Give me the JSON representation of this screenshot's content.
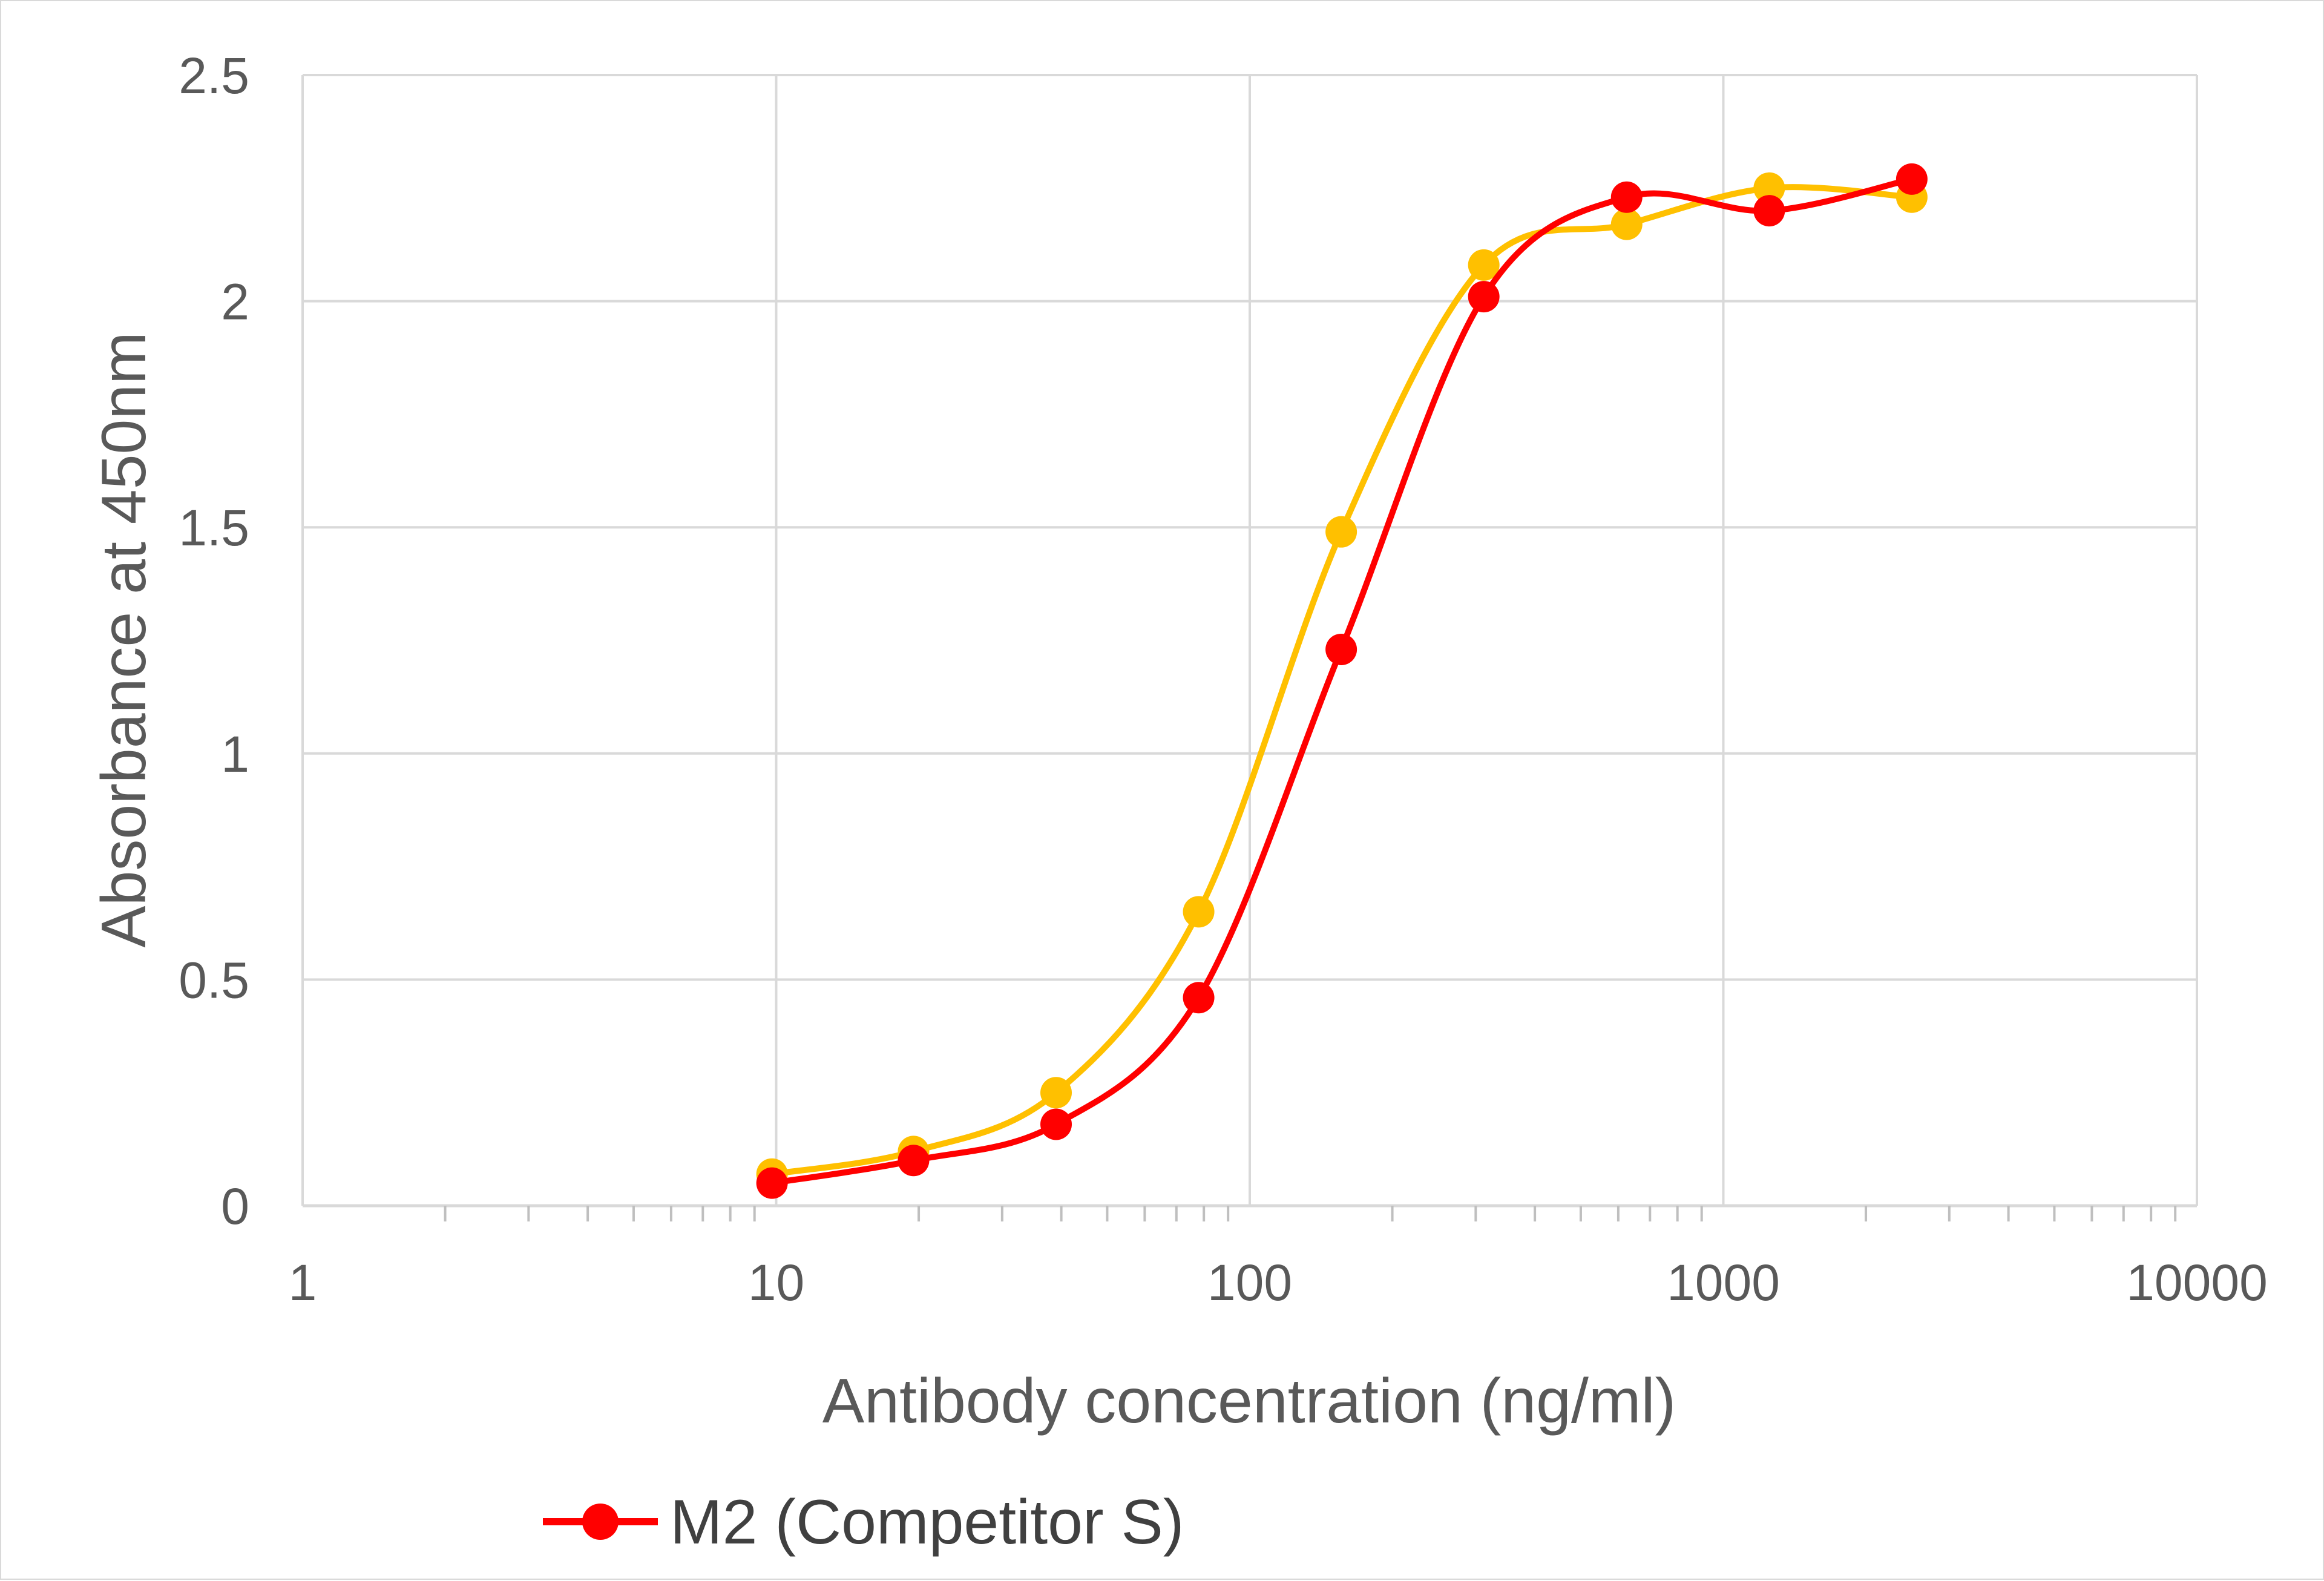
{
  "chart_data": {
    "type": "line",
    "xscale": "log",
    "xlabel": "Antibody concentration (ng/ml)",
    "ylabel": "Absorbance at 450nm",
    "xlim": [
      1,
      10000
    ],
    "ylim": [
      0,
      2.5
    ],
    "x_ticks": [
      "1",
      "10",
      "100",
      "1000",
      "10000"
    ],
    "y_ticks": [
      "0",
      "0.5",
      "1",
      "1.5",
      "2",
      "2.5"
    ],
    "grid": true,
    "smooth": true,
    "legend_position": "bottom-left",
    "series": [
      {
        "name": "M2 (Competitor S)",
        "color": "#ff0000",
        "x": [
          9.8,
          19.5,
          39,
          78,
          156,
          312,
          625,
          1250,
          2500
        ],
        "y": [
          0.05,
          0.1,
          0.18,
          0.46,
          1.23,
          2.01,
          2.23,
          2.2,
          2.27
        ]
      },
      {
        "color": "#ffc000",
        "x": [
          9.8,
          19.5,
          39,
          78,
          156,
          312,
          625,
          1250,
          2500
        ],
        "y": [
          0.07,
          0.12,
          0.25,
          0.65,
          1.49,
          2.08,
          2.17,
          2.25,
          2.23
        ]
      }
    ]
  }
}
